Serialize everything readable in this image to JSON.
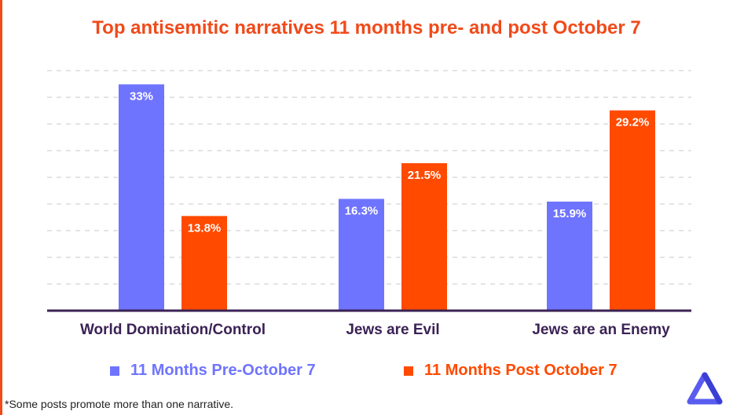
{
  "chart_data": {
    "type": "bar",
    "title": "Top antisemitic narratives 11 months pre- and post October 7",
    "categories": [
      "World Domination/Control",
      "Jews are Evil",
      "Jews are an Enemy"
    ],
    "series": [
      {
        "name": "11 Months Pre-October 7",
        "values": [
          33,
          16.3,
          15.9
        ],
        "labels": [
          "33%",
          "16.3%",
          "15.9%"
        ],
        "color": "#6f74ff"
      },
      {
        "name": "11 Months Post October 7",
        "values": [
          13.8,
          21.5,
          29.2
        ],
        "labels": [
          "13.8%",
          "21.5%",
          "29.2%"
        ],
        "color": "#ff4a00"
      }
    ],
    "ylim": [
      0,
      35
    ],
    "grid": true,
    "legend_position": "bottom"
  },
  "footnote": "*Some posts promote more than one narrative.",
  "colors": {
    "accent": "#f04a1a",
    "axis": "#3b2255",
    "pre": "#6f74ff",
    "post": "#ff4a00"
  },
  "logo_icon": "triangle-logo-icon"
}
